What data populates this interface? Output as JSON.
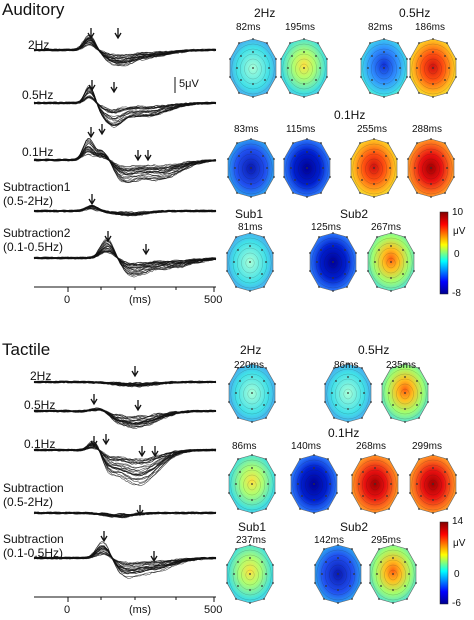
{
  "auditory": {
    "title": "Auditory",
    "cond_2hz": "2Hz",
    "cond_05hz": "0.5Hz",
    "cond_01hz": "0.1Hz",
    "sub1_line1": "Subtraction1",
    "sub1_line2": "(0.5-2Hz)",
    "sub2_line1": "Subtraction2",
    "sub2_line2": "(0.1-0.5Hz)",
    "scale_label": "5μV",
    "axis_0": "0",
    "axis_ms": "(ms)",
    "axis_500": "500",
    "maps": {
      "t_2hz": "2Hz",
      "l_2a": "82ms",
      "l_2b": "195ms",
      "t_05hz": "0.5Hz",
      "l_05a": "82ms",
      "l_05b": "186ms",
      "t_01hz": "0.1Hz",
      "l_01a": "83ms",
      "l_01b": "115ms",
      "l_01c": "255ms",
      "l_01d": "288ms",
      "t_sub1": "Sub1",
      "l_s1": "81ms",
      "t_sub2": "Sub2",
      "l_s2a": "125ms",
      "l_s2b": "267ms"
    },
    "colorbar": {
      "max": "10",
      "unit": "μV",
      "mid": "0",
      "min": "-8"
    }
  },
  "tactile": {
    "title": "Tactile",
    "cond_2hz": "2Hz",
    "cond_05hz": "0.5Hz",
    "cond_01hz": "0.1Hz",
    "sub1_line1": "Subtraction",
    "sub1_line2": "(0.5-2Hz)",
    "sub2_line1": "Subtraction",
    "sub2_line2": "(0.1-0.5Hz)",
    "axis_0": "0",
    "axis_ms": "(ms)",
    "axis_500": "500",
    "maps": {
      "t_2hz": "2Hz",
      "l_2a": "220ms",
      "t_05hz": "0.5Hz",
      "l_05a": "86ms",
      "l_05b": "235ms",
      "t_01hz": "0.1Hz",
      "l_01a": "86ms",
      "l_01b": "140ms",
      "l_01c": "268ms",
      "l_01d": "299ms",
      "t_sub1": "Sub1",
      "l_s1": "237ms",
      "t_sub2": "Sub2",
      "l_s2a": "142ms",
      "l_s2b": "295ms"
    },
    "colorbar": {
      "max": "14",
      "unit": "μV",
      "mid": "0",
      "min": "-6"
    }
  },
  "colors": {
    "jet": [
      "#00008f",
      "#0000ff",
      "#00ffff",
      "#ffff00",
      "#ff0000",
      "#800000"
    ]
  }
}
